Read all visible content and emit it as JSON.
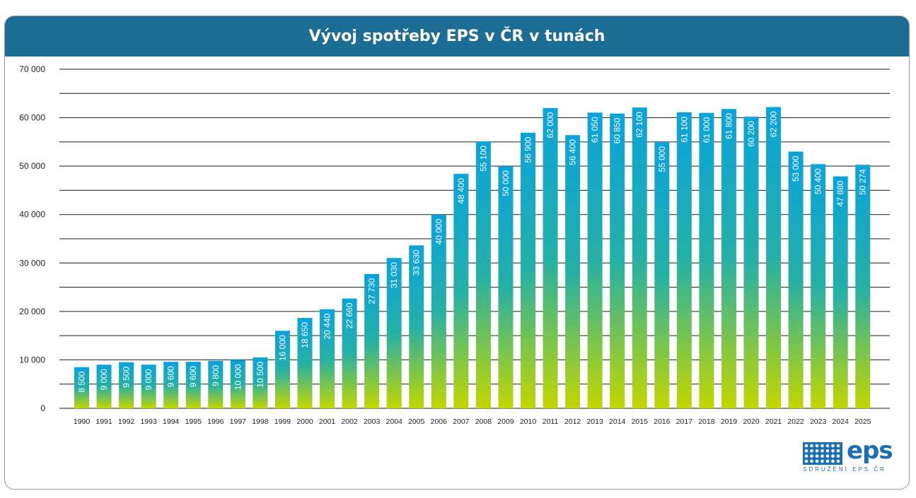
{
  "title": "Vývoj spotřeby EPS v ČR v tunách",
  "chart_data": {
    "type": "bar",
    "title": "Vývoj spotřeby EPS v ČR v tunách",
    "categories": [
      "1990",
      "1991",
      "1992",
      "1993",
      "1994",
      "1995",
      "1996",
      "1997",
      "1998",
      "1999",
      "2000",
      "2001",
      "2002",
      "2003",
      "2004",
      "2005",
      "2006",
      "2007",
      "2008",
      "2009",
      "2010",
      "2011",
      "2012",
      "2013",
      "2014",
      "2015",
      "2016",
      "2017",
      "2018",
      "2019",
      "2020",
      "2021",
      "2022",
      "2023",
      "2024",
      "2025"
    ],
    "values": [
      8500,
      9000,
      9500,
      9000,
      9600,
      9600,
      9800,
      10000,
      10500,
      16000,
      18650,
      20440,
      22660,
      27730,
      31030,
      33630,
      40000,
      48400,
      55100,
      50000,
      56900,
      62000,
      56400,
      61050,
      60850,
      62100,
      55000,
      61100,
      61000,
      61800,
      60200,
      62200,
      53000,
      50400,
      47880,
      50274
    ],
    "value_labels": [
      "8 500",
      "9 000",
      "9 500",
      "9 000",
      "9 600",
      "9 600",
      "9 800",
      "10 000",
      "10 500",
      "16 000",
      "18 650",
      "20 440",
      "22 660",
      "27 730",
      "31 030",
      "33 630",
      "40 000",
      "48 400",
      "55 100",
      "50 000",
      "56 900",
      "62 000",
      "56 400",
      "61 050",
      "60 850",
      "62 100",
      "55 000",
      "61 100",
      "61 000",
      "61 800",
      "60 200",
      "62 200",
      "53 000",
      "50 400",
      "47 880",
      "50 274"
    ],
    "yticks": [
      0,
      10000,
      20000,
      30000,
      40000,
      50000,
      60000,
      70000
    ],
    "ytick_labels": [
      "0",
      "10 000",
      "20 000",
      "30 000",
      "40 000",
      "50 000",
      "60 000",
      "70  000"
    ],
    "ylim": [
      0,
      70000
    ],
    "grid": true,
    "xlabel": "",
    "ylabel": "",
    "colors": {
      "bar_top": "#0aa3dc",
      "bar_mid": "#25b0a6",
      "bar_bottom": "#c3d600",
      "grid": "#1a1a1a",
      "header": "#1c6d96"
    }
  },
  "logo": {
    "text": "eps",
    "subtitle": "SDRUŽENÍ EPS ČR"
  }
}
